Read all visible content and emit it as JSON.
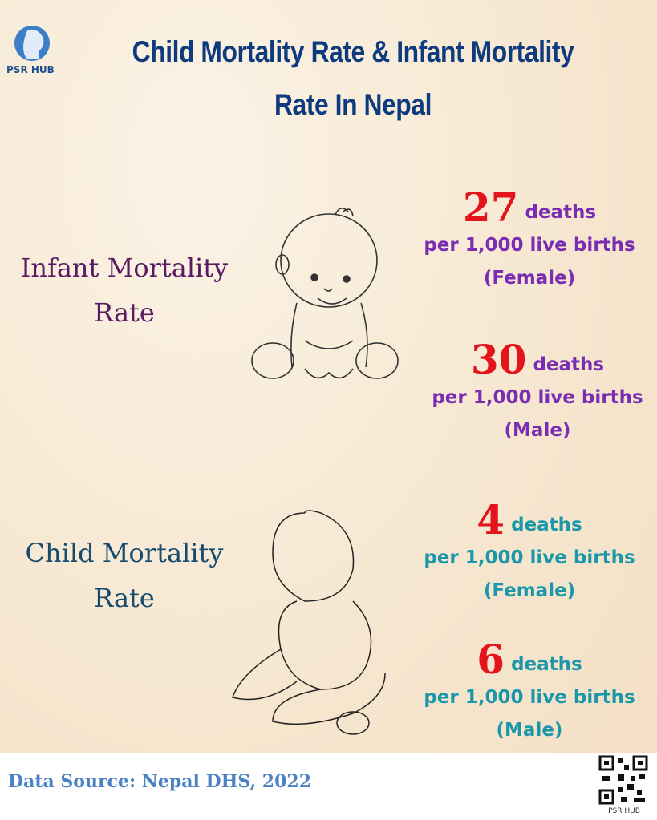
{
  "logo": {
    "label": "PSR HUB"
  },
  "header": {
    "title": "Child Mortality Rate & Infant Mortality Rate In Nepal"
  },
  "sections": [
    {
      "label": "Infant Mortality Rate",
      "stats": [
        {
          "value": 27,
          "unit": "deaths",
          "basis": "per 1,000 live births",
          "group": "(Female)"
        },
        {
          "value": 30,
          "unit": "deaths",
          "basis": "per 1,000 live births",
          "group": "(Male)"
        }
      ]
    },
    {
      "label": "Child Mortality Rate",
      "stats": [
        {
          "value": 4,
          "unit": "deaths",
          "basis": "per 1,000 live births",
          "group": "(Female)"
        },
        {
          "value": 6,
          "unit": "deaths",
          "basis": "per 1,000 live births",
          "group": "(Male)"
        }
      ]
    }
  ],
  "footer": {
    "source": "Data Source:  Nepal DHS, 2022",
    "qr_label": "PSR HUB"
  }
}
